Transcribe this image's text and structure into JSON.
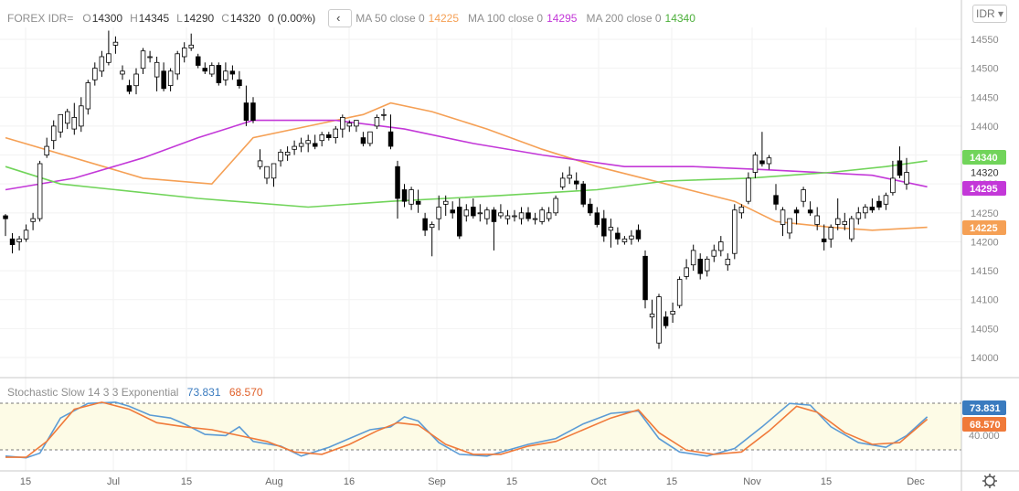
{
  "header": {
    "symbol": "FOREX IDR=",
    "ohlc": [
      {
        "key": "O",
        "value": "14300"
      },
      {
        "key": "H",
        "value": "14345"
      },
      {
        "key": "L",
        "value": "14290"
      },
      {
        "key": "C",
        "value": "14320"
      }
    ],
    "change": "0 (0.00%)",
    "collapse_icon": "chevron-left-icon",
    "currency_button": "IDR",
    "ma": [
      {
        "label": "MA 50 close 0",
        "value": "14225",
        "color": "#f5a055"
      },
      {
        "label": "MA 100 close 0",
        "value": "14295",
        "color": "#c338d8"
      },
      {
        "label": "MA 200 close 0",
        "value": "14340",
        "color": "#71d45a"
      }
    ]
  },
  "colors": {
    "up_candle": "#ffffff",
    "down_candle": "#000000",
    "ma50": "#f5a055",
    "ma100": "#c338d8",
    "ma200": "#71d45a",
    "stoch_k": "#5b9bd5",
    "stoch_d": "#f07a3a",
    "stoch_band": "#fdfbe6"
  },
  "price_axis": {
    "ticks": [
      "14550",
      "14500",
      "14450",
      "14400",
      "14350",
      "14300",
      "14250",
      "14200",
      "14150",
      "14100",
      "14050",
      "14000"
    ],
    "current_price": "14320",
    "badges": [
      {
        "value": "14340",
        "color": "#71d45a"
      },
      {
        "value": "14295",
        "color": "#c338d8"
      },
      {
        "value": "14225",
        "color": "#f5a055"
      }
    ]
  },
  "time_axis": {
    "labels": [
      "15",
      "Jul",
      "15",
      "Aug",
      "16",
      "Sep",
      "15",
      "Oct",
      "15",
      "Nov",
      "15",
      "Dec"
    ],
    "settings_icon": "gear-icon"
  },
  "stochastic": {
    "label": "Stochastic Slow 14 3 3 Exponential",
    "k_value": "73.831",
    "d_value": "68.570",
    "tick": "40.000",
    "badges": [
      {
        "value": "73.831",
        "color": "#3a7bbf"
      },
      {
        "value": "68.570",
        "color": "#f07a3a"
      }
    ]
  },
  "chart_data": {
    "type": "candlestick",
    "symbol": "IDR=",
    "y_range": [
      13990,
      14570
    ],
    "candles": [
      [
        14245,
        14248,
        14210,
        14240
      ],
      [
        14205,
        14215,
        14180,
        14195
      ],
      [
        14200,
        14210,
        14185,
        14205
      ],
      [
        14205,
        14230,
        14200,
        14220
      ],
      [
        14235,
        14250,
        14220,
        14240
      ],
      [
        14240,
        14340,
        14235,
        14335
      ],
      [
        14350,
        14380,
        14345,
        14365
      ],
      [
        14375,
        14410,
        14360,
        14400
      ],
      [
        14390,
        14420,
        14380,
        14420
      ],
      [
        14405,
        14430,
        14395,
        14425
      ],
      [
        14395,
        14440,
        14385,
        14415
      ],
      [
        14400,
        14450,
        14390,
        14435
      ],
      [
        14430,
        14480,
        14420,
        14475
      ],
      [
        14480,
        14510,
        14470,
        14500
      ],
      [
        14495,
        14530,
        14485,
        14520
      ],
      [
        14510,
        14565,
        14505,
        14525
      ],
      [
        14540,
        14555,
        14525,
        14545
      ],
      [
        14490,
        14505,
        14480,
        14495
      ],
      [
        14470,
        14480,
        14455,
        14460
      ],
      [
        14470,
        14500,
        14455,
        14490
      ],
      [
        14500,
        14535,
        14490,
        14530
      ],
      [
        14520,
        14530,
        14510,
        14520
      ],
      [
        14485,
        14520,
        14460,
        14510
      ],
      [
        14495,
        14510,
        14460,
        14465
      ],
      [
        14470,
        14500,
        14460,
        14495
      ],
      [
        14490,
        14530,
        14480,
        14525
      ],
      [
        14520,
        14545,
        14510,
        14535
      ],
      [
        14535,
        14560,
        14530,
        14540
      ],
      [
        14520,
        14525,
        14500,
        14505
      ],
      [
        14500,
        14510,
        14490,
        14495
      ],
      [
        14490,
        14510,
        14485,
        14505
      ],
      [
        14505,
        14510,
        14470,
        14475
      ],
      [
        14480,
        14510,
        14470,
        14495
      ],
      [
        14495,
        14505,
        14480,
        14490
      ],
      [
        14480,
        14495,
        14465,
        14470
      ],
      [
        14440,
        14470,
        14400,
        14410
      ],
      [
        14440,
        14450,
        14405,
        14410
      ],
      [
        14330,
        14360,
        14325,
        14340
      ],
      [
        14310,
        14330,
        14300,
        14330
      ],
      [
        14310,
        14335,
        14295,
        14335
      ],
      [
        14340,
        14360,
        14330,
        14355
      ],
      [
        14350,
        14365,
        14340,
        14355
      ],
      [
        14360,
        14375,
        14350,
        14365
      ],
      [
        14365,
        14380,
        14355,
        14370
      ],
      [
        14370,
        14385,
        14355,
        14375
      ],
      [
        14370,
        14385,
        14360,
        14365
      ],
      [
        14375,
        14390,
        14365,
        14385
      ],
      [
        14385,
        14390,
        14375,
        14380
      ],
      [
        14380,
        14400,
        14370,
        14395
      ],
      [
        14395,
        14420,
        14380,
        14415
      ],
      [
        14400,
        14410,
        14390,
        14405
      ],
      [
        14400,
        14410,
        14390,
        14410
      ],
      [
        14380,
        14390,
        14365,
        14370
      ],
      [
        14370,
        14390,
        14365,
        14390
      ],
      [
        14400,
        14420,
        14395,
        14415
      ],
      [
        14420,
        14430,
        14410,
        14420
      ],
      [
        14390,
        14420,
        14360,
        14365
      ],
      [
        14330,
        14340,
        14240,
        14275
      ],
      [
        14290,
        14300,
        14260,
        14270
      ],
      [
        14265,
        14295,
        14255,
        14290
      ],
      [
        14270,
        14290,
        14250,
        14265
      ],
      [
        14240,
        14250,
        14210,
        14220
      ],
      [
        14225,
        14235,
        14175,
        14230
      ],
      [
        14240,
        14280,
        14220,
        14260
      ],
      [
        14265,
        14280,
        14245,
        14270
      ],
      [
        14255,
        14270,
        14240,
        14250
      ],
      [
        14260,
        14275,
        14205,
        14210
      ],
      [
        14245,
        14265,
        14235,
        14255
      ],
      [
        14260,
        14275,
        14240,
        14245
      ],
      [
        14250,
        14265,
        14235,
        14250
      ],
      [
        14240,
        14260,
        14230,
        14255
      ],
      [
        14255,
        14260,
        14185,
        14235
      ],
      [
        14245,
        14265,
        14240,
        14250
      ],
      [
        14240,
        14255,
        14230,
        14245
      ],
      [
        14245,
        14255,
        14235,
        14245
      ],
      [
        14240,
        14260,
        14230,
        14250
      ],
      [
        14250,
        14260,
        14235,
        14240
      ],
      [
        14240,
        14250,
        14230,
        14240
      ],
      [
        14235,
        14260,
        14230,
        14255
      ],
      [
        14240,
        14260,
        14235,
        14250
      ],
      [
        14250,
        14280,
        14245,
        14275
      ],
      [
        14295,
        14320,
        14290,
        14310
      ],
      [
        14310,
        14330,
        14300,
        14315
      ],
      [
        14305,
        14320,
        14290,
        14300
      ],
      [
        14300,
        14305,
        14260,
        14265
      ],
      [
        14265,
        14275,
        14245,
        14250
      ],
      [
        14250,
        14260,
        14225,
        14230
      ],
      [
        14240,
        14255,
        14200,
        14210
      ],
      [
        14220,
        14240,
        14190,
        14225
      ],
      [
        14215,
        14225,
        14195,
        14205
      ],
      [
        14200,
        14210,
        14195,
        14205
      ],
      [
        14205,
        14220,
        14195,
        14210
      ],
      [
        14220,
        14230,
        14200,
        14205
      ],
      [
        14175,
        14185,
        14085,
        14100
      ],
      [
        14070,
        14100,
        14050,
        14075
      ],
      [
        14025,
        14110,
        14015,
        14105
      ],
      [
        14070,
        14080,
        14050,
        14055
      ],
      [
        14075,
        14095,
        14060,
        14080
      ],
      [
        14090,
        14140,
        14085,
        14135
      ],
      [
        14140,
        14170,
        14135,
        14155
      ],
      [
        14160,
        14195,
        14150,
        14185
      ],
      [
        14170,
        14180,
        14135,
        14145
      ],
      [
        14150,
        14175,
        14140,
        14170
      ],
      [
        14175,
        14195,
        14165,
        14185
      ],
      [
        14185,
        14210,
        14175,
        14200
      ],
      [
        14160,
        14180,
        14150,
        14170
      ],
      [
        14180,
        14265,
        14170,
        14255
      ],
      [
        14250,
        14265,
        14240,
        14260
      ],
      [
        14270,
        14320,
        14265,
        14310
      ],
      [
        14320,
        14355,
        14310,
        14350
      ],
      [
        14340,
        14390,
        14330,
        14335
      ],
      [
        14335,
        14350,
        14325,
        14345
      ],
      [
        14280,
        14300,
        14255,
        14265
      ],
      [
        14230,
        14260,
        14210,
        14255
      ],
      [
        14215,
        14240,
        14205,
        14240
      ],
      [
        14255,
        14260,
        14230,
        14250
      ],
      [
        14270,
        14295,
        14260,
        14290
      ],
      [
        14255,
        14270,
        14245,
        14250
      ],
      [
        14230,
        14260,
        14220,
        14245
      ],
      [
        14205,
        14230,
        14185,
        14200
      ],
      [
        14205,
        14230,
        14190,
        14225
      ],
      [
        14230,
        14275,
        14220,
        14240
      ],
      [
        14230,
        14250,
        14220,
        14235
      ],
      [
        14205,
        14245,
        14200,
        14240
      ],
      [
        14240,
        14260,
        14230,
        14250
      ],
      [
        14250,
        14265,
        14240,
        14260
      ],
      [
        14260,
        14275,
        14250,
        14255
      ],
      [
        14270,
        14280,
        14255,
        14260
      ],
      [
        14265,
        14285,
        14255,
        14280
      ],
      [
        14285,
        14340,
        14280,
        14310
      ],
      [
        14340,
        14365,
        14310,
        14315
      ],
      [
        14300,
        14345,
        14290,
        14320
      ]
    ],
    "series": [
      {
        "name": "MA 50 close 0",
        "last": 14225,
        "points": [
          [
            0,
            14380
          ],
          [
            20,
            14310
          ],
          [
            30,
            14300
          ],
          [
            36,
            14380
          ],
          [
            48,
            14410
          ],
          [
            52,
            14420
          ],
          [
            56,
            14440
          ],
          [
            62,
            14425
          ],
          [
            70,
            14395
          ],
          [
            78,
            14360
          ],
          [
            86,
            14330
          ],
          [
            96,
            14300
          ],
          [
            106,
            14270
          ],
          [
            112,
            14235
          ],
          [
            120,
            14225
          ],
          [
            126,
            14220
          ],
          [
            134,
            14225
          ]
        ]
      },
      {
        "name": "MA 100 close 0",
        "last": 14295,
        "points": [
          [
            0,
            14290
          ],
          [
            10,
            14310
          ],
          [
            20,
            14345
          ],
          [
            28,
            14380
          ],
          [
            36,
            14410
          ],
          [
            48,
            14410
          ],
          [
            58,
            14395
          ],
          [
            68,
            14370
          ],
          [
            78,
            14350
          ],
          [
            90,
            14330
          ],
          [
            100,
            14330
          ],
          [
            110,
            14325
          ],
          [
            118,
            14320
          ],
          [
            126,
            14315
          ],
          [
            134,
            14295
          ]
        ]
      },
      {
        "name": "MA 200 close 0",
        "last": 14340,
        "points": [
          [
            0,
            14330
          ],
          [
            8,
            14300
          ],
          [
            16,
            14290
          ],
          [
            28,
            14275
          ],
          [
            44,
            14260
          ],
          [
            56,
            14270
          ],
          [
            72,
            14280
          ],
          [
            86,
            14290
          ],
          [
            96,
            14305
          ],
          [
            108,
            14310
          ],
          [
            120,
            14320
          ],
          [
            128,
            14330
          ],
          [
            134,
            14340
          ]
        ]
      }
    ],
    "stochastic": {
      "range": [
        0,
        100
      ],
      "k_last": 73.831,
      "d_last": 68.57,
      "k_points": [
        [
          0,
          5
        ],
        [
          3,
          2
        ],
        [
          5,
          10
        ],
        [
          8,
          70
        ],
        [
          12,
          95
        ],
        [
          16,
          97
        ],
        [
          18,
          90
        ],
        [
          21,
          75
        ],
        [
          24,
          70
        ],
        [
          26,
          60
        ],
        [
          29,
          42
        ],
        [
          32,
          40
        ],
        [
          34,
          55
        ],
        [
          36,
          30
        ],
        [
          40,
          22
        ],
        [
          43,
          5
        ],
        [
          47,
          20
        ],
        [
          50,
          35
        ],
        [
          53,
          50
        ],
        [
          56,
          55
        ],
        [
          58,
          72
        ],
        [
          60,
          65
        ],
        [
          63,
          28
        ],
        [
          66,
          8
        ],
        [
          70,
          5
        ],
        [
          73,
          15
        ],
        [
          76,
          25
        ],
        [
          80,
          35
        ],
        [
          84,
          60
        ],
        [
          88,
          78
        ],
        [
          92,
          82
        ],
        [
          95,
          35
        ],
        [
          98,
          12
        ],
        [
          102,
          5
        ],
        [
          106,
          18
        ],
        [
          110,
          55
        ],
        [
          114,
          95
        ],
        [
          117,
          92
        ],
        [
          120,
          55
        ],
        [
          124,
          28
        ],
        [
          128,
          20
        ],
        [
          131,
          40
        ],
        [
          134,
          72
        ]
      ],
      "d_points": [
        [
          0,
          3
        ],
        [
          3,
          3
        ],
        [
          6,
          30
        ],
        [
          10,
          85
        ],
        [
          14,
          97
        ],
        [
          18,
          85
        ],
        [
          22,
          62
        ],
        [
          26,
          55
        ],
        [
          30,
          50
        ],
        [
          34,
          40
        ],
        [
          38,
          30
        ],
        [
          42,
          12
        ],
        [
          46,
          8
        ],
        [
          50,
          25
        ],
        [
          54,
          48
        ],
        [
          57,
          62
        ],
        [
          60,
          58
        ],
        [
          64,
          25
        ],
        [
          68,
          8
        ],
        [
          72,
          8
        ],
        [
          76,
          22
        ],
        [
          80,
          30
        ],
        [
          84,
          50
        ],
        [
          88,
          70
        ],
        [
          92,
          84
        ],
        [
          95,
          45
        ],
        [
          99,
          15
        ],
        [
          103,
          8
        ],
        [
          107,
          12
        ],
        [
          111,
          48
        ],
        [
          115,
          90
        ],
        [
          118,
          80
        ],
        [
          122,
          45
        ],
        [
          126,
          25
        ],
        [
          130,
          28
        ],
        [
          134,
          68
        ]
      ]
    }
  }
}
